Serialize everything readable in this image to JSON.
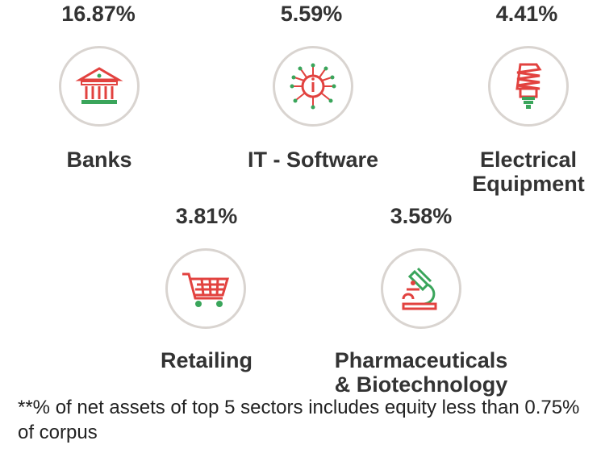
{
  "sectors": [
    {
      "percent": "16.87%",
      "label": "Banks",
      "icon": "bank-icon"
    },
    {
      "percent": "5.59%",
      "label": "IT - Software",
      "icon": "circuit-chip-icon"
    },
    {
      "percent": "4.41%",
      "label_line1": "Electrical",
      "label_line2": "Equipment",
      "icon": "lightbulb-icon"
    },
    {
      "percent": "3.81%",
      "label": "Retailing",
      "icon": "shopping-cart-icon"
    },
    {
      "percent": "3.58%",
      "label_line1": "Pharmaceuticals",
      "label_line2": "& Biotechnology",
      "icon": "microscope-icon"
    }
  ],
  "footnote": "**% of net assets of top 5 sectors includes equity less than 0.75% of corpus",
  "colors": {
    "icon_red": "#e2423f",
    "icon_green": "#3aa55b",
    "ring": "#d9d4d0"
  }
}
